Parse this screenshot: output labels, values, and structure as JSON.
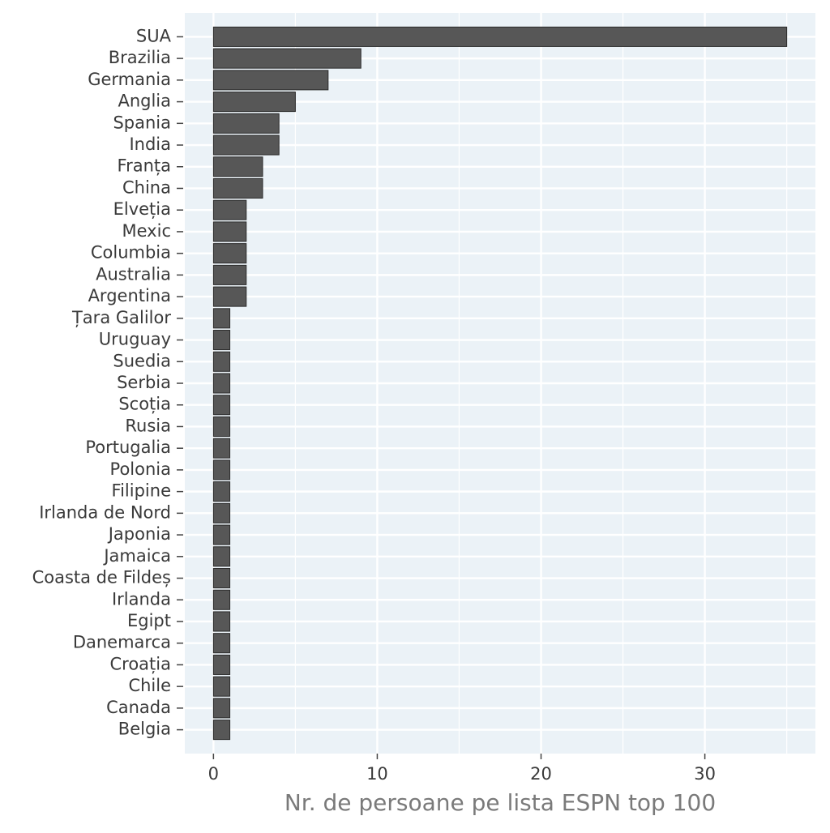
{
  "chart_data": {
    "type": "barh",
    "x_label": "Nr. de persoane pe lista ESPN top 100",
    "categories": [
      "SUA",
      "Brazilia",
      "Germania",
      "Anglia",
      "Spania",
      "India",
      "Franța",
      "China",
      "Elveția",
      "Mexic",
      "Columbia",
      "Australia",
      "Argentina",
      "Țara Galilor",
      "Uruguay",
      "Suedia",
      "Serbia",
      "Scoția",
      "Rusia",
      "Portugalia",
      "Polonia",
      "Filipine",
      "Irlanda de Nord",
      "Japonia",
      "Jamaica",
      "Coasta de Fildeș",
      "Irlanda",
      "Egipt",
      "Danemarca",
      "Croația",
      "Chile",
      "Canada",
      "Belgia"
    ],
    "values": [
      35,
      9,
      7,
      5,
      4,
      4,
      3,
      3,
      2,
      2,
      2,
      2,
      2,
      1,
      1,
      1,
      1,
      1,
      1,
      1,
      1,
      1,
      1,
      1,
      1,
      1,
      1,
      1,
      1,
      1,
      1,
      1,
      1
    ],
    "color": "#575757",
    "xlim": [
      -1.75,
      36.75
    ],
    "xticks": [
      0,
      10,
      20,
      30
    ],
    "x_minor_gridlines": [
      5,
      15,
      25,
      35
    ],
    "grid": true
  }
}
